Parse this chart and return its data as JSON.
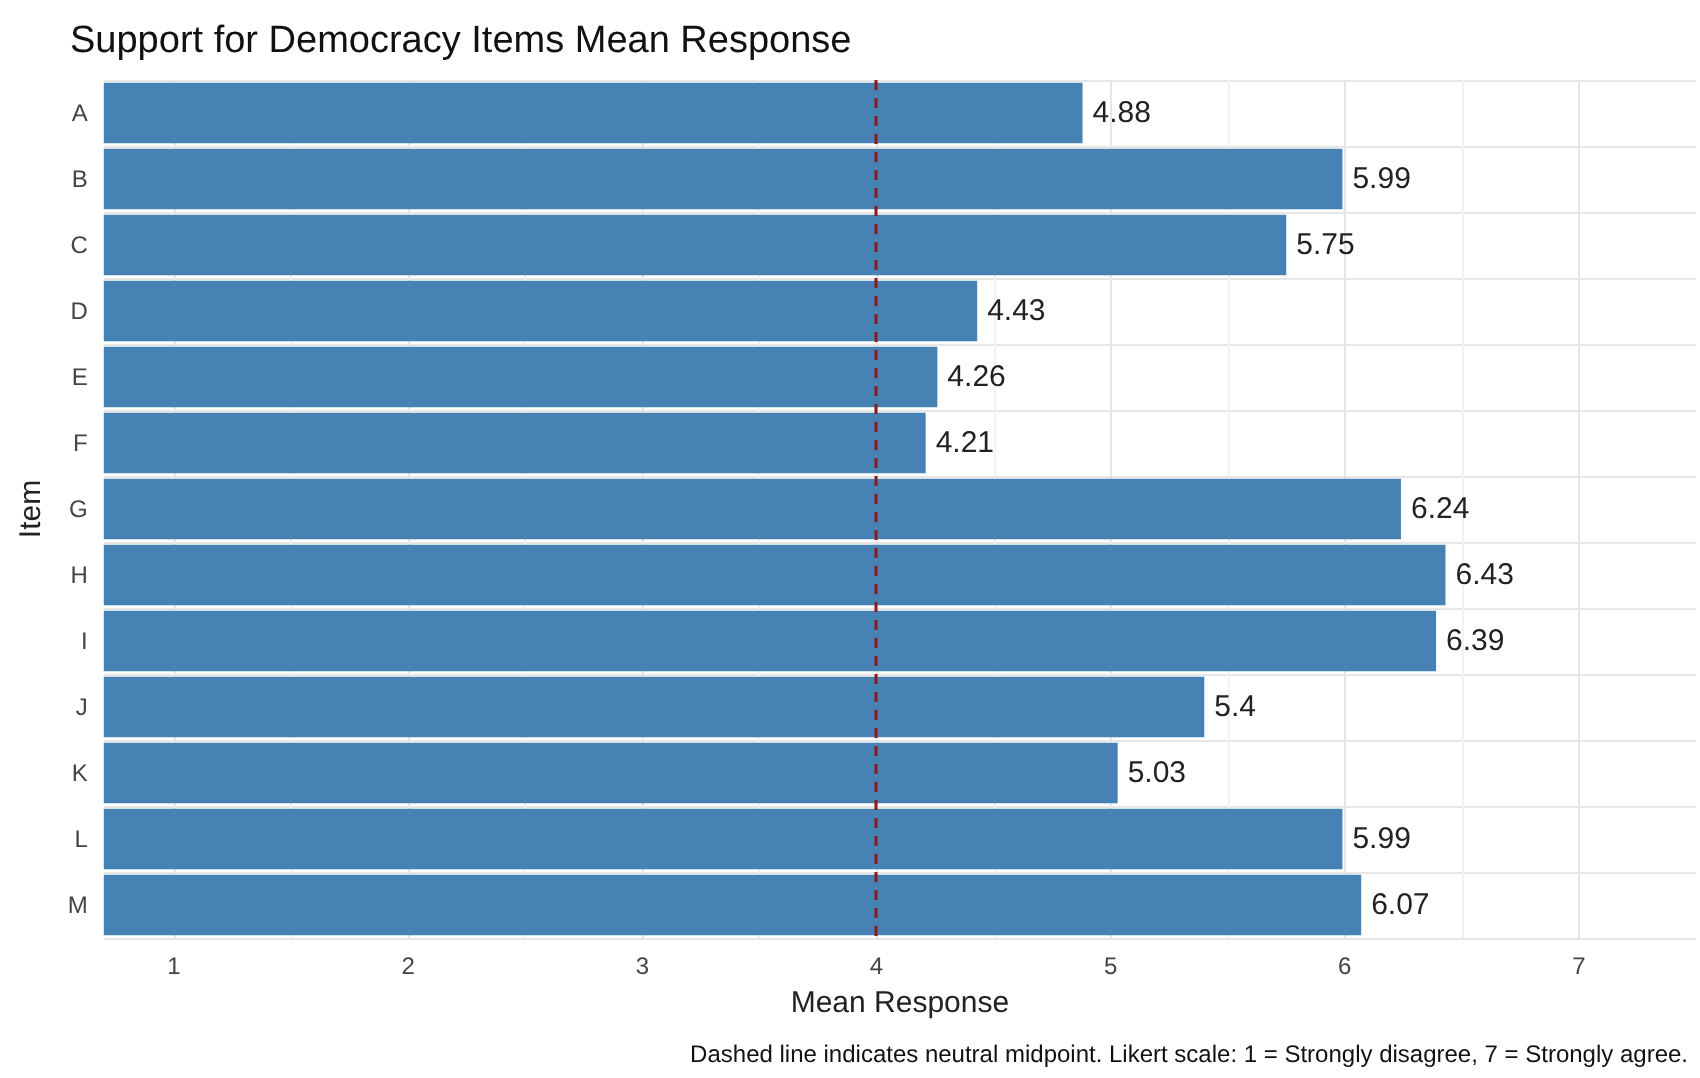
{
  "chart_data": {
    "type": "bar",
    "orientation": "horizontal",
    "title": "Support for Democracy Items Mean Response",
    "xlabel": "Mean Response",
    "ylabel": "Item",
    "categories": [
      "A",
      "B",
      "C",
      "D",
      "E",
      "F",
      "G",
      "H",
      "I",
      "J",
      "K",
      "L",
      "M"
    ],
    "values": [
      4.88,
      5.99,
      5.75,
      4.43,
      4.26,
      4.21,
      6.24,
      6.43,
      6.39,
      5.4,
      5.03,
      5.99,
      6.07
    ],
    "color": "#4682b4",
    "data_labels": true,
    "xlim": [
      0.7,
      7.5
    ],
    "xticks": [
      1,
      2,
      3,
      4,
      5,
      6,
      7
    ],
    "grid": true,
    "ref_lines": [
      {
        "axis": "x",
        "value": 4,
        "color": "#8b1a1a",
        "line_style": "dashed"
      }
    ],
    "annotations": [
      "Dashed line indicates neutral midpoint. Likert scale: 1 = Strongly disagree, 7 = Strongly agree."
    ]
  }
}
